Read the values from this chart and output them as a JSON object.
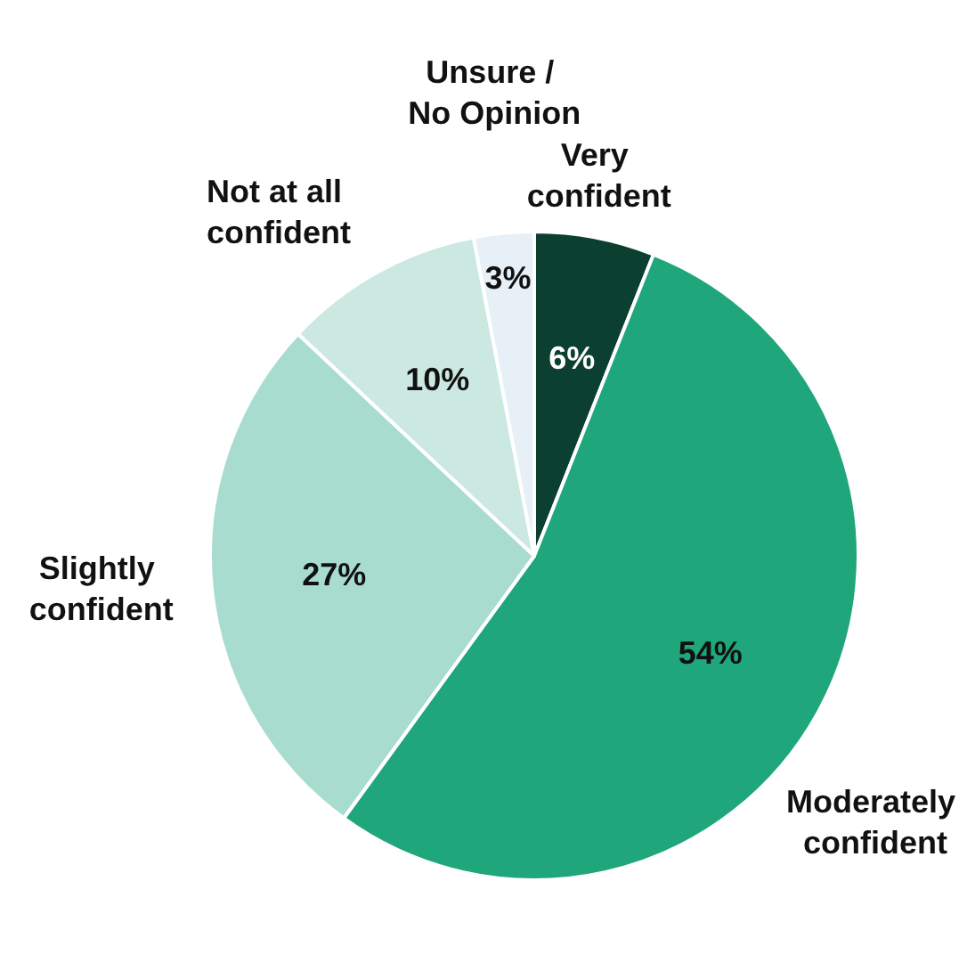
{
  "chart_data": {
    "type": "pie",
    "categories": [
      "Very confident",
      "Moderately confident",
      "Slightly confident",
      "Not at all confident",
      "Unsure / No Opinion"
    ],
    "values": [
      6,
      54,
      27,
      10,
      3
    ],
    "colors": [
      "#0b3f2f",
      "#1fa67b",
      "#a8dccf",
      "#cbe9e1",
      "#e6f0f6"
    ],
    "value_labels": [
      "6%",
      "54%",
      "27%",
      "10%",
      "3%"
    ],
    "legend": false
  }
}
